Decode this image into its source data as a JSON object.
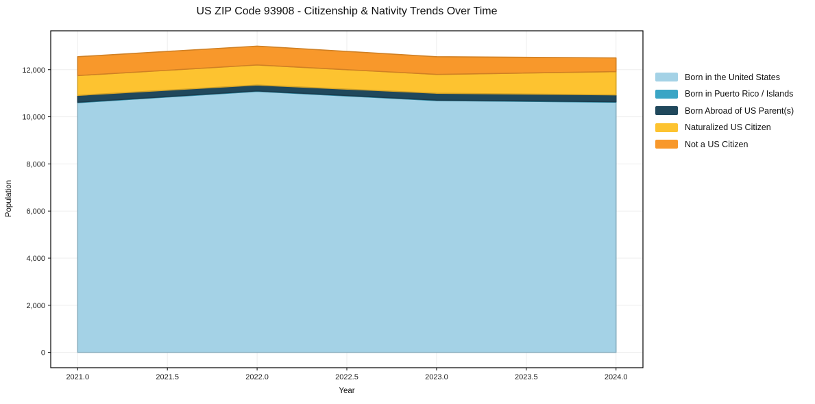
{
  "chart_data": {
    "type": "area",
    "stacked": true,
    "title": "US ZIP Code 93908 - Citizenship & Nativity Trends Over Time",
    "xlabel": "Year",
    "ylabel": "Population",
    "x": [
      2021,
      2022,
      2023,
      2024
    ],
    "series": [
      {
        "name": "Born in the United States",
        "color": "#a4d2e6",
        "values": [
          10600,
          11080,
          10690,
          10620
        ]
      },
      {
        "name": "Born in Puerto Rico / Islands",
        "color": "#3aa5c5",
        "values": [
          20,
          20,
          20,
          20
        ]
      },
      {
        "name": "Born Abroad of US Parent(s)",
        "color": "#20485c",
        "values": [
          290,
          250,
          290,
          290
        ]
      },
      {
        "name": "Naturalized US Citizen",
        "color": "#fdc330",
        "values": [
          840,
          850,
          800,
          990
        ]
      },
      {
        "name": "Not a US Citizen",
        "color": "#f8982b",
        "values": [
          800,
          800,
          750,
          580
        ]
      }
    ],
    "totals": [
      12550,
      13000,
      12550,
      12500
    ],
    "xlim": [
      2020.85,
      2024.15
    ],
    "ylim": [
      -650,
      13650
    ],
    "xticks": {
      "values": [
        2021.0,
        2021.5,
        2022.0,
        2022.5,
        2023.0,
        2023.5,
        2024.0
      ],
      "labels": [
        "2021.0",
        "2021.5",
        "2022.0",
        "2022.5",
        "2023.0",
        "2023.5",
        "2024.0"
      ]
    },
    "yticks": {
      "values": [
        0,
        2000,
        4000,
        6000,
        8000,
        10000,
        12000
      ],
      "labels": [
        "0",
        "2,000",
        "4,000",
        "6,000",
        "8,000",
        "10,000",
        "12,000"
      ]
    },
    "grid": true,
    "legend_position": "right-outside"
  },
  "colors": {
    "background": "#ffffff",
    "grid": "#ededed",
    "spine": "#000000",
    "tick_text": "#1a1a1a"
  }
}
